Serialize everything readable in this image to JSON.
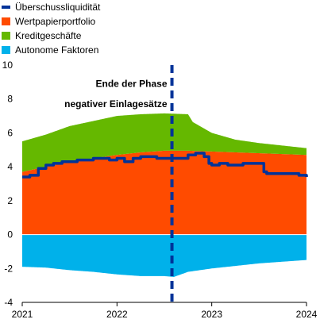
{
  "chart_data": {
    "type": "area",
    "x_axis": {
      "min": 2021.0,
      "max": 2024.0,
      "ticks": [
        2021,
        2022,
        2023,
        2024
      ],
      "tick_labels": [
        "2021",
        "2022",
        "2023",
        "2024"
      ]
    },
    "y_axis": {
      "min": -4,
      "max": 10,
      "ticks": [
        -4,
        -2,
        0,
        2,
        4,
        6,
        8,
        10
      ],
      "tick_labels": [
        "-4",
        "-2",
        "0",
        "2",
        "4",
        "6",
        "8",
        "10"
      ]
    },
    "grid": false,
    "legend_position": "top-left",
    "series": [
      {
        "name": "Überschussliquidität",
        "kind": "line",
        "color": "#003399",
        "x": [
          2021.0,
          2021.08,
          2021.17,
          2021.25,
          2021.33,
          2021.42,
          2021.5,
          2021.58,
          2021.67,
          2021.75,
          2021.83,
          2021.92,
          2022.0,
          2022.08,
          2022.17,
          2022.25,
          2022.33,
          2022.42,
          2022.5,
          2022.58,
          2022.67,
          2022.75,
          2022.8,
          2022.83,
          2022.92,
          2022.97,
          2023.0,
          2023.08,
          2023.17,
          2023.25,
          2023.33,
          2023.42,
          2023.5,
          2023.55,
          2023.58,
          2023.67,
          2023.75,
          2023.83,
          2023.92,
          2024.0
        ],
        "y": [
          3.4,
          3.5,
          3.9,
          4.1,
          4.2,
          4.3,
          4.3,
          4.4,
          4.4,
          4.5,
          4.5,
          4.4,
          4.5,
          4.3,
          4.5,
          4.6,
          4.6,
          4.5,
          4.5,
          4.5,
          4.5,
          4.7,
          4.7,
          4.8,
          4.6,
          4.2,
          4.1,
          4.2,
          4.1,
          4.1,
          4.2,
          4.2,
          4.2,
          3.7,
          3.6,
          3.6,
          3.6,
          3.6,
          3.5,
          3.4
        ]
      },
      {
        "name": "Wertpapierportfolio",
        "kind": "area",
        "color": "#ff4b00",
        "x": [
          2021.0,
          2021.25,
          2021.5,
          2021.75,
          2022.0,
          2022.25,
          2022.5,
          2022.75,
          2023.0,
          2023.25,
          2023.5,
          2023.75,
          2024.0
        ],
        "y": [
          3.7,
          4.0,
          4.3,
          4.5,
          4.7,
          4.85,
          4.95,
          4.95,
          4.9,
          4.85,
          4.8,
          4.75,
          4.7
        ]
      },
      {
        "name": "Kreditgeschäfte",
        "kind": "area",
        "color": "#65b800",
        "x": [
          2021.0,
          2021.25,
          2021.5,
          2021.75,
          2022.0,
          2022.25,
          2022.5,
          2022.75,
          2022.8,
          2023.0,
          2023.25,
          2023.5,
          2023.75,
          2024.0
        ],
        "y": [
          1.8,
          1.9,
          2.1,
          2.2,
          2.3,
          2.25,
          2.2,
          2.15,
          1.7,
          1.1,
          0.75,
          0.6,
          0.5,
          0.4
        ]
      },
      {
        "name": "Autonome Faktoren",
        "kind": "area",
        "color": "#00b1ea",
        "x": [
          2021.0,
          2021.25,
          2021.5,
          2021.75,
          2022.0,
          2022.25,
          2022.5,
          2022.6,
          2022.75,
          2023.0,
          2023.25,
          2023.5,
          2023.75,
          2024.0
        ],
        "y": [
          -1.9,
          -1.95,
          -2.1,
          -2.2,
          -2.35,
          -2.45,
          -2.45,
          -2.5,
          -2.2,
          -2.0,
          -1.85,
          -1.7,
          -1.6,
          -1.5
        ]
      }
    ],
    "vline": {
      "x": 2022.58,
      "color": "#003399",
      "style": "dashed"
    },
    "annotations": [
      {
        "text": "Ende der Phase",
        "x": 2022.58,
        "y": 8.9
      },
      {
        "text": "negativer Einlagesätze",
        "x": 2022.58,
        "y": 7.7
      }
    ]
  }
}
